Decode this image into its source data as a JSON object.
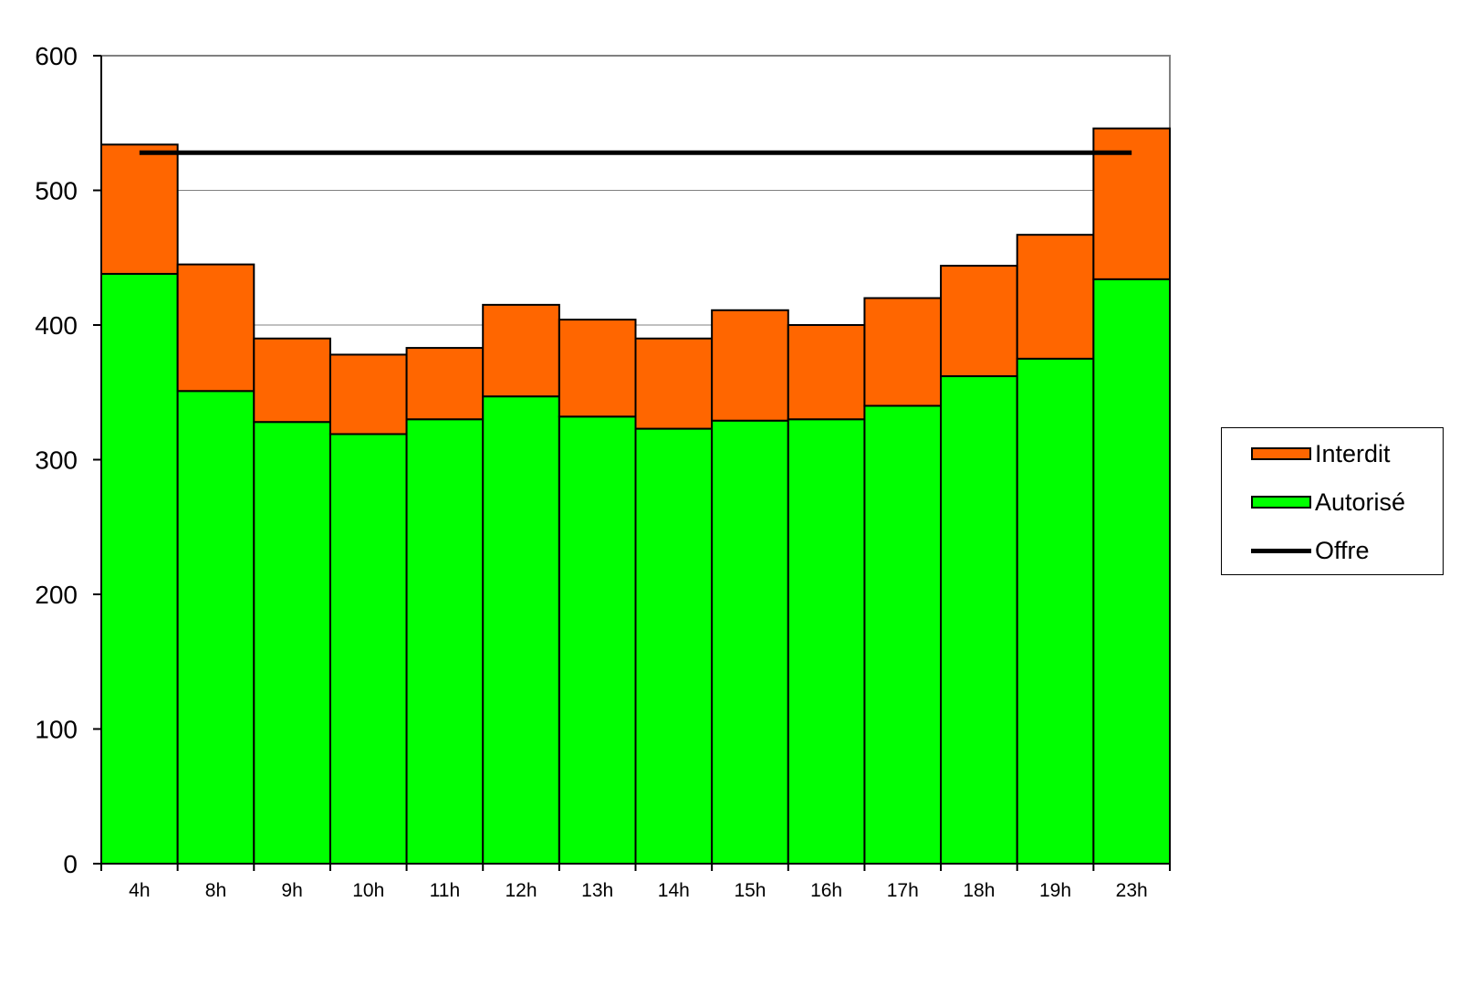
{
  "chart_data": {
    "type": "bar",
    "stacked": true,
    "categories": [
      "4h",
      "8h",
      "9h",
      "10h",
      "11h",
      "12h",
      "13h",
      "14h",
      "15h",
      "16h",
      "17h",
      "18h",
      "19h",
      "23h"
    ],
    "series": [
      {
        "name": "Autorisé",
        "color": "#00ff00",
        "values": [
          438,
          351,
          328,
          319,
          330,
          347,
          332,
          323,
          329,
          330,
          340,
          362,
          375,
          434
        ]
      },
      {
        "name": "Interdit",
        "color": "#ff6600",
        "values": [
          96,
          94,
          62,
          59,
          53,
          68,
          72,
          67,
          82,
          70,
          80,
          82,
          92,
          112
        ]
      }
    ],
    "line": {
      "name": "Offre",
      "color": "#000000",
      "value": 528
    },
    "ylim": [
      0,
      600
    ],
    "yticks": [
      0,
      100,
      200,
      300,
      400,
      500,
      600
    ],
    "grid": true,
    "legend_position": "right"
  },
  "legend": {
    "items": [
      {
        "label": "Interdit",
        "color": "#ff6600",
        "kind": "bar"
      },
      {
        "label": "Autorisé",
        "color": "#00ff00",
        "kind": "bar"
      },
      {
        "label": "Offre",
        "color": "#000000",
        "kind": "line"
      }
    ]
  }
}
